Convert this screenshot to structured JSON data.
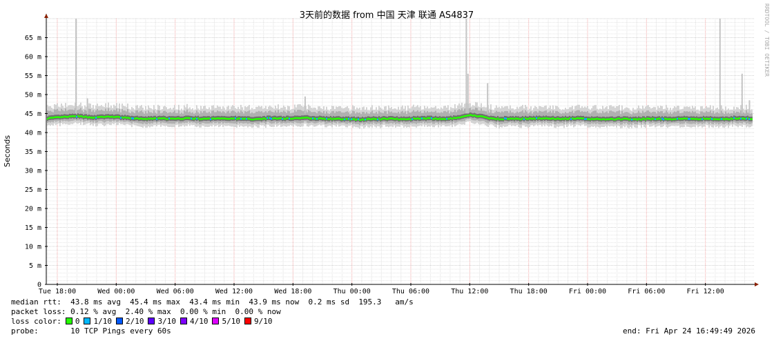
{
  "chart_data": {
    "type": "area",
    "title": "3天前的数据 from 中国 天津 联通 AS4837",
    "ylabel": "Seconds",
    "watermark": "RRDTOOL / TOBI OETIKER",
    "ylim": [
      0,
      70
    ],
    "xlim": [
      "Tue 16:52",
      "Fri 16:49"
    ],
    "y_ticks": [
      "0",
      "5 m",
      "10 m",
      "15 m",
      "20 m",
      "25 m",
      "30 m",
      "35 m",
      "40 m",
      "45 m",
      "50 m",
      "55 m",
      "60 m",
      "65 m"
    ],
    "x_ticks": [
      "Tue 18:00",
      "Wed 00:00",
      "Wed 06:00",
      "Wed 12:00",
      "Wed 18:00",
      "Thu 00:00",
      "Thu 06:00",
      "Thu 12:00",
      "Thu 18:00",
      "Fri 00:00",
      "Fri 06:00",
      "Fri 12:00"
    ],
    "grid": true,
    "median_hourly_ms": {
      "from": "Tue 17:00",
      "values": [
        43.8,
        44.0,
        44.2,
        44.3,
        44.1,
        44.0,
        44.2,
        44.1,
        43.9,
        43.7,
        43.6,
        43.7,
        43.7,
        43.6,
        43.8,
        43.7,
        43.6,
        43.7,
        43.8,
        43.7,
        43.6,
        43.6,
        43.7,
        43.8,
        43.7,
        43.8,
        43.9,
        43.8,
        43.7,
        43.6,
        43.6,
        43.5,
        43.5,
        43.6,
        43.6,
        43.7,
        43.6,
        43.6,
        43.8,
        43.7,
        43.6,
        43.7,
        44.0,
        44.6,
        44.3,
        43.8,
        43.6,
        43.7,
        43.6,
        43.7,
        43.8,
        43.8,
        43.6,
        43.7,
        43.7,
        43.6,
        43.6,
        43.5,
        43.6,
        43.6,
        43.5,
        43.6,
        43.6,
        43.6,
        43.6,
        43.7,
        43.6,
        43.7,
        43.6,
        43.5,
        43.8,
        43.7
      ]
    },
    "spikes": [
      {
        "t": "Tue 19:50",
        "v": 70
      },
      {
        "t": "Tue 21:00",
        "v": 49
      },
      {
        "t": "Wed 19:10",
        "v": 49.5
      },
      {
        "t": "Thu 11:35",
        "v": 70
      },
      {
        "t": "Thu 11:45",
        "v": 55.5
      },
      {
        "t": "Thu 13:45",
        "v": 53
      },
      {
        "t": "Fri 13:25",
        "v": 70
      },
      {
        "t": "Fri 15:40",
        "v": 55.5
      },
      {
        "t": "Fri 16:25",
        "v": 48.5
      }
    ]
  },
  "legend": {
    "median_rtt": "median rtt:  43.8 ms avg  45.4 ms max  43.4 ms min  43.9 ms now  0.2 ms sd  195.3   am/s",
    "packet_loss": "packet loss: 0.12 % avg  2.40 % max  0.00 % min  0.00 % now",
    "loss_color_label": "loss color:",
    "loss_colors": [
      {
        "label": "0",
        "color": "#26ff00"
      },
      {
        "label": "1/10",
        "color": "#00b8ff"
      },
      {
        "label": "2/10",
        "color": "#0059ff"
      },
      {
        "label": "3/10",
        "color": "#5e00ff"
      },
      {
        "label": "4/10",
        "color": "#7e00ff"
      },
      {
        "label": "5/10",
        "color": "#dd00ff"
      },
      {
        "label": "9/10",
        "color": "#ff0000"
      }
    ],
    "probe_label": "probe:",
    "probe": "10 TCP Pings every 60s",
    "end": "end: Fri Apr 24 16:49:49 2026"
  }
}
